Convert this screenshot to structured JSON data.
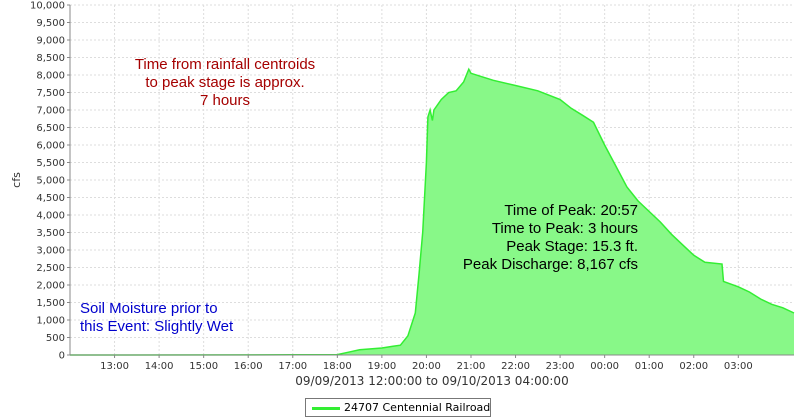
{
  "chart_data": {
    "type": "area",
    "title": "",
    "xlabel": "09/09/2013 12:00:00 to 09/10/2013 04:00:00",
    "ylabel": "cfs",
    "x_ticks": [
      "13:00",
      "14:00",
      "15:00",
      "16:00",
      "17:00",
      "18:00",
      "19:00",
      "20:00",
      "21:00",
      "22:00",
      "23:00",
      "00:00",
      "01:00",
      "02:00",
      "03:00"
    ],
    "y_ticks": [
      "0",
      "500",
      "1,000",
      "1,500",
      "2,000",
      "2,500",
      "3,000",
      "3,500",
      "4,000",
      "4,500",
      "5,000",
      "5,500",
      "6,000",
      "6,500",
      "7,000",
      "7,500",
      "8,000",
      "8,500",
      "9,000",
      "9,500",
      "10,000"
    ],
    "ylim": [
      0,
      10000
    ],
    "xlim": [
      "12:00",
      "04:15"
    ],
    "grid": true,
    "colors": {
      "fill": "#88f888",
      "line": "#33ee33"
    },
    "series": [
      {
        "name": "24707 Centennial Railroad",
        "x": [
          "12:00",
          "17:00",
          "18:00",
          "18:15",
          "18:30",
          "19:00",
          "19:15",
          "19:25",
          "19:35",
          "19:45",
          "19:50",
          "19:55",
          "20:00",
          "20:02",
          "20:05",
          "20:08",
          "20:10",
          "20:20",
          "20:30",
          "20:40",
          "20:50",
          "20:57",
          "21:00",
          "21:15",
          "21:30",
          "22:00",
          "22:30",
          "23:00",
          "23:15",
          "23:30",
          "23:45",
          "00:00",
          "00:15",
          "00:30",
          "00:45",
          "01:00",
          "01:15",
          "01:30",
          "01:45",
          "02:00",
          "02:15",
          "02:38",
          "02:40",
          "03:00",
          "03:15",
          "03:30",
          "03:45",
          "04:00",
          "04:15"
        ],
        "values": [
          0,
          5,
          10,
          80,
          150,
          200,
          250,
          280,
          550,
          1200,
          2300,
          3500,
          5500,
          6800,
          7000,
          6700,
          7000,
          7300,
          7500,
          7550,
          7800,
          8167,
          8050,
          7950,
          7850,
          7700,
          7550,
          7300,
          7050,
          6850,
          6650,
          6000,
          5400,
          4800,
          4400,
          4100,
          3800,
          3450,
          3150,
          2850,
          2650,
          2600,
          2100,
          1950,
          1800,
          1600,
          1450,
          1350,
          1200
        ]
      }
    ]
  },
  "annotations": {
    "rainfall": [
      "Time from rainfall centroids",
      "to peak stage is approx.",
      "7 hours"
    ],
    "soil": [
      "Soil Moisture prior to",
      "this Event: Slightly Wet"
    ],
    "peak": [
      "Time of Peak: 20:57",
      "Time to Peak: 3 hours",
      "Peak Stage: 15.3 ft.",
      "Peak Discharge: 8,167 cfs"
    ]
  },
  "legend": {
    "label": "24707 Centennial Railroad"
  }
}
